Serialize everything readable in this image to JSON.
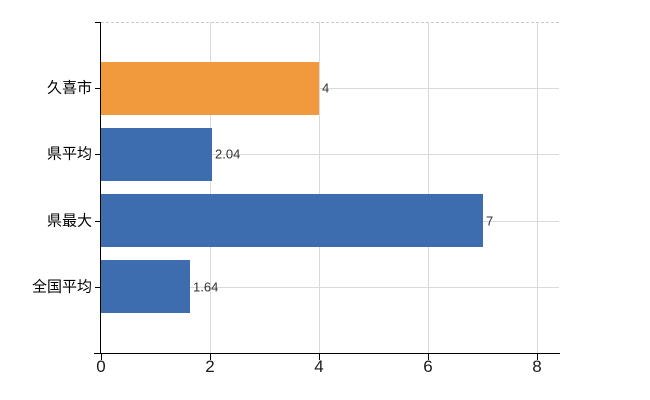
{
  "chart_data": {
    "type": "bar",
    "orientation": "horizontal",
    "title": "",
    "categories": [
      "久喜市",
      "県平均",
      "県最大",
      "全国平均"
    ],
    "values": [
      4,
      2.04,
      7,
      1.64
    ],
    "value_labels": [
      "4",
      "2.04",
      "7",
      "1.64"
    ],
    "bar_colors": [
      "#F0993D",
      "#3D6DAF",
      "#3D6DAF",
      "#3D6DAF"
    ],
    "highlight_color": "#F0993D",
    "base_color": "#3D6DAF",
    "x_tick_labels": [
      "0",
      "2",
      "4",
      "6",
      "8"
    ],
    "x_tick_values": [
      0,
      2,
      4,
      6,
      8
    ],
    "xlim": [
      0,
      8.4
    ],
    "grid": "on",
    "legend": "none"
  },
  "colors": {
    "background": "#FFFFFF",
    "axis": "#000000",
    "gridline": "#D8DBD6",
    "plot_border_dashed": "#C9CDC9",
    "category_text": "#000000",
    "tick_text": "#1A1A1A",
    "value_text": "#333333"
  }
}
